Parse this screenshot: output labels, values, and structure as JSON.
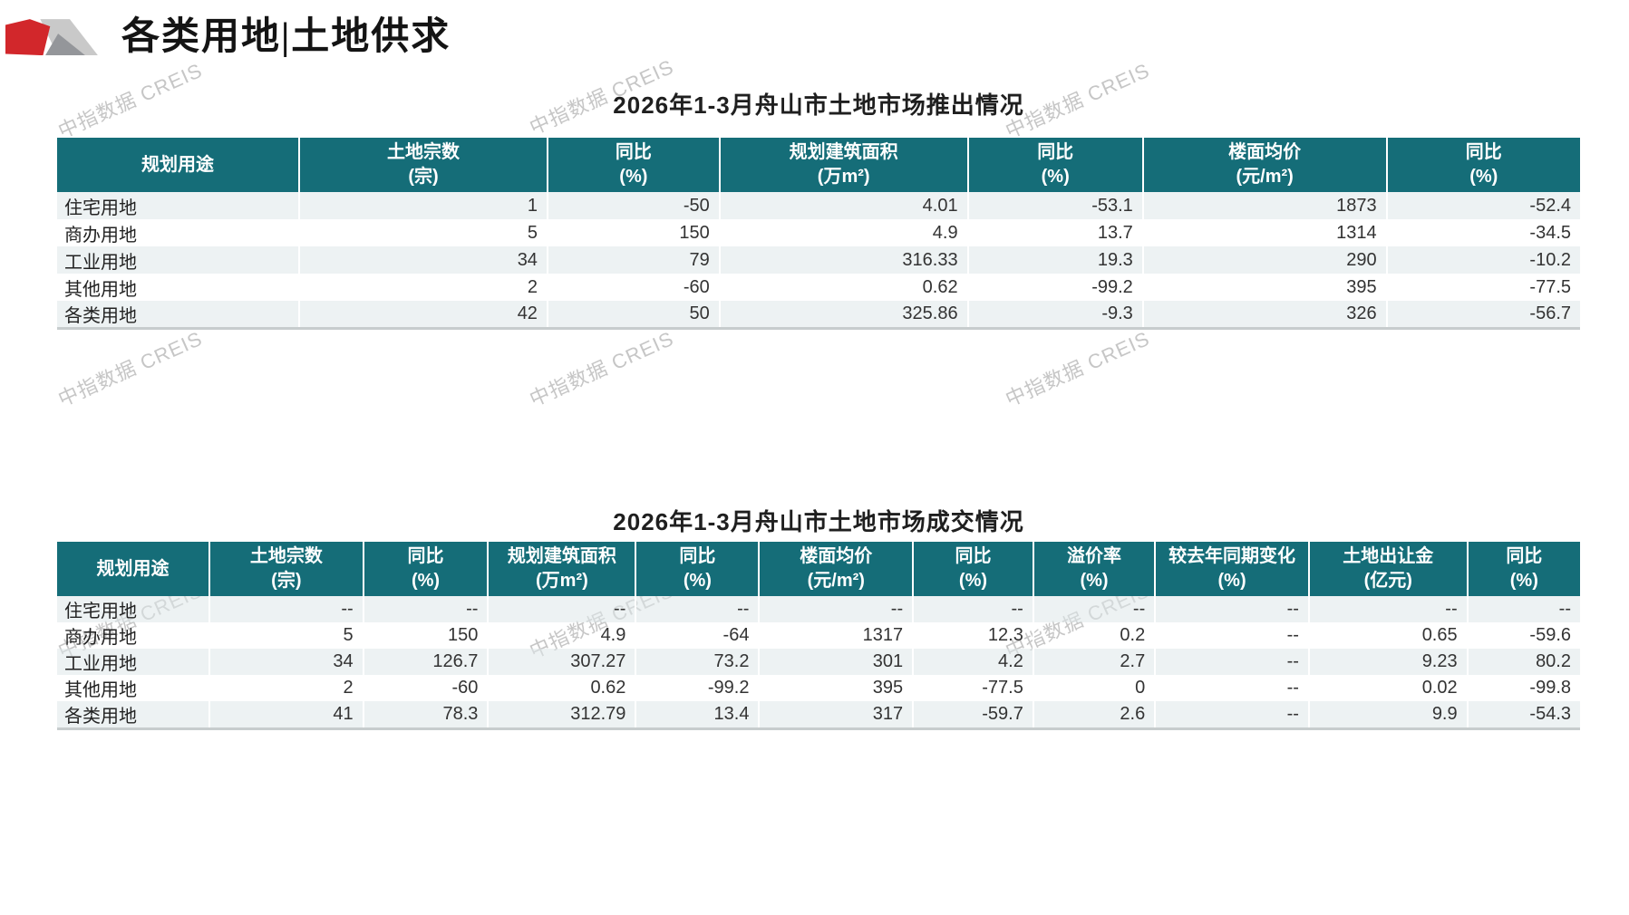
{
  "page": {
    "title": "各类用地|土地供求",
    "watermark": "中指数据 CREIS"
  },
  "colors": {
    "header_teal": "#156d78",
    "logo_red": "#d2272b",
    "stripe": "#eef3f4"
  },
  "supply_table": {
    "title": "2026年1-3月舟山市土地市场推出情况",
    "columns": [
      {
        "line1": "规划用途",
        "line2": ""
      },
      {
        "line1": "土地宗数",
        "line2": "(宗)"
      },
      {
        "line1": "同比",
        "line2": "(%)"
      },
      {
        "line1": "规划建筑面积",
        "line2": "(万m²)"
      },
      {
        "line1": "同比",
        "line2": "(%)"
      },
      {
        "line1": "楼面均价",
        "line2": "(元/m²)"
      },
      {
        "line1": "同比",
        "line2": "(%)"
      }
    ],
    "rows": [
      [
        "住宅用地",
        "1",
        "-50",
        "4.01",
        "-53.1",
        "1873",
        "-52.4"
      ],
      [
        "商办用地",
        "5",
        "150",
        "4.9",
        "13.7",
        "1314",
        "-34.5"
      ],
      [
        "工业用地",
        "34",
        "79",
        "316.33",
        "19.3",
        "290",
        "-10.2"
      ],
      [
        "其他用地",
        "2",
        "-60",
        "0.62",
        "-99.2",
        "395",
        "-77.5"
      ],
      [
        "各类用地",
        "42",
        "50",
        "325.86",
        "-9.3",
        "326",
        "-56.7"
      ]
    ]
  },
  "deal_table": {
    "title": "2026年1-3月舟山市土地市场成交情况",
    "columns": [
      {
        "line1": "规划用途",
        "line2": ""
      },
      {
        "line1": "土地宗数",
        "line2": "(宗)"
      },
      {
        "line1": "同比",
        "line2": "(%)"
      },
      {
        "line1": "规划建筑面积",
        "line2": "(万m²)"
      },
      {
        "line1": "同比",
        "line2": "(%)"
      },
      {
        "line1": "楼面均价",
        "line2": "(元/m²)"
      },
      {
        "line1": "同比",
        "line2": "(%)"
      },
      {
        "line1": "溢价率",
        "line2": "(%)"
      },
      {
        "line1": "较去年同期变化",
        "line2": "(%)"
      },
      {
        "line1": "土地出让金",
        "line2": "(亿元)"
      },
      {
        "line1": "同比",
        "line2": "(%)"
      }
    ],
    "rows": [
      [
        "住宅用地",
        "--",
        "--",
        "--",
        "--",
        "--",
        "--",
        "--",
        "--",
        "--",
        "--"
      ],
      [
        "商办用地",
        "5",
        "150",
        "4.9",
        "-64",
        "1317",
        "12.3",
        "0.2",
        "--",
        "0.65",
        "-59.6"
      ],
      [
        "工业用地",
        "34",
        "126.7",
        "307.27",
        "73.2",
        "301",
        "4.2",
        "2.7",
        "--",
        "9.23",
        "80.2"
      ],
      [
        "其他用地",
        "2",
        "-60",
        "0.62",
        "-99.2",
        "395",
        "-77.5",
        "0",
        "--",
        "0.02",
        "-99.8"
      ],
      [
        "各类用地",
        "41",
        "78.3",
        "312.79",
        "13.4",
        "317",
        "-59.7",
        "2.6",
        "--",
        "9.9",
        "-54.3"
      ]
    ]
  }
}
